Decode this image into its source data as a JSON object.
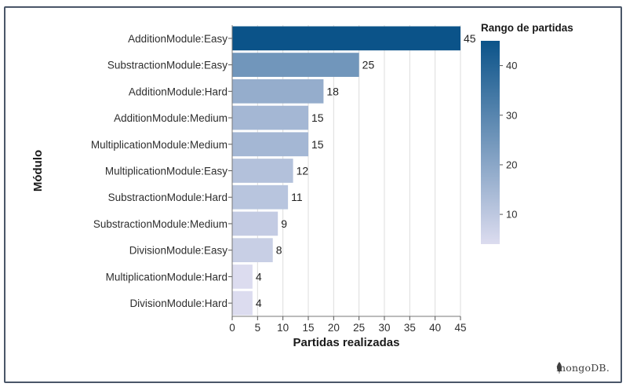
{
  "chart_data": {
    "type": "bar",
    "orientation": "horizontal",
    "categories": [
      "AdditionModule:Easy",
      "SubstractionModule:Easy",
      "AdditionModule:Hard",
      "AdditionModule:Medium",
      "MultiplicationModule:Medium",
      "MultiplicationModule:Easy",
      "SubstractionModule:Hard",
      "SubstractionModule:Medium",
      "DivisionModule:Easy",
      "MultiplicationModule:Hard",
      "DivisionModule:Hard"
    ],
    "values": [
      45,
      25,
      18,
      15,
      15,
      12,
      11,
      9,
      8,
      4,
      4
    ],
    "xlabel": "Partidas realizadas",
    "ylabel": "Módulo",
    "xlim": [
      0,
      45
    ],
    "xticks": [
      0,
      5,
      10,
      15,
      20,
      25,
      30,
      35,
      40,
      45
    ],
    "grid": "vertical",
    "data_labels": true,
    "legend": {
      "title": "Rango de partidas",
      "type": "color-gradient",
      "placement": "right",
      "range": [
        4,
        45
      ],
      "ticks": [
        10,
        20,
        30,
        40
      ],
      "color_low": "#dcdcef",
      "color_high": "#0b5389"
    }
  },
  "footer": {
    "brand": "mongoDB.",
    "icon": "mongodb-leaf-icon"
  }
}
